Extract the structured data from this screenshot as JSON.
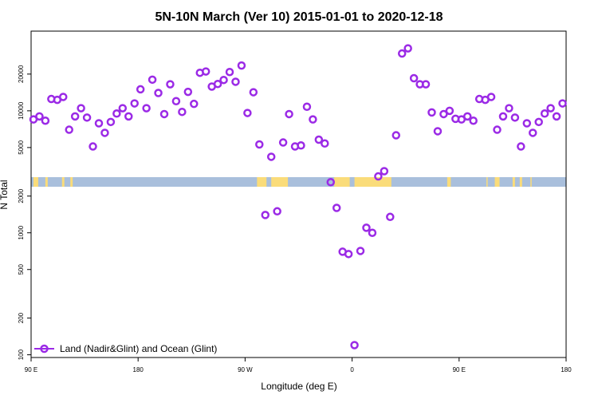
{
  "chart_data": {
    "type": "scatter",
    "title": "5N-10N March (Ver 10)   2015-01-01 to 2020-12-18",
    "xlabel": "Longitude (deg E)",
    "ylabel": "N Total",
    "x_ticks": [
      {
        "value": 90,
        "label": "90 E"
      },
      {
        "value": 180,
        "label": "180"
      },
      {
        "value": 270,
        "label": "90 W"
      },
      {
        "value": 360,
        "label": "0"
      },
      {
        "value": 450,
        "label": "90 E"
      },
      {
        "value": 540,
        "label": "180"
      }
    ],
    "y_ticks": [
      100,
      200,
      500,
      1000,
      2000,
      5000,
      10000,
      20000
    ],
    "xlim": [
      90,
      540
    ],
    "ylim": [
      95,
      45000
    ],
    "y_scale": "log",
    "legend_position": "bottom-left",
    "colors": {
      "series": "#9b2ae6",
      "ocean_band": "#a9bfdc",
      "land_band": "#fadc7a"
    },
    "series": [
      {
        "name": "Land (Nadir&Glint) and Ocean (Glint)",
        "x": [
          92,
          97,
          102,
          107,
          112,
          117,
          122,
          127,
          132,
          137,
          142,
          147,
          152,
          157,
          162,
          167,
          172,
          177,
          182,
          187,
          192,
          197,
          202,
          207,
          212,
          217,
          222,
          227,
          232,
          237,
          242,
          247,
          252,
          257,
          262,
          267,
          272,
          277,
          282,
          287,
          292,
          297,
          302,
          307,
          312,
          317,
          322,
          327,
          332,
          337,
          342,
          347,
          352,
          357,
          362,
          367,
          372,
          377,
          382,
          387,
          392,
          397,
          402,
          407,
          412,
          417,
          422,
          427,
          432,
          437,
          442,
          447,
          452,
          457,
          462,
          467,
          472,
          477,
          482,
          487,
          492,
          497,
          502,
          507,
          512,
          517,
          522,
          527,
          532,
          537
        ],
        "y": [
          8500,
          9000,
          8300,
          12500,
          12300,
          13000,
          7000,
          9000,
          10500,
          8800,
          5100,
          7900,
          6600,
          8100,
          9500,
          10500,
          9000,
          11500,
          15000,
          10500,
          18000,
          14000,
          9400,
          16500,
          12000,
          9800,
          14300,
          11400,
          20500,
          21000,
          15800,
          16600,
          17900,
          20800,
          17300,
          23500,
          9600,
          14200,
          5300,
          1400,
          4200,
          1500,
          5500,
          9400,
          5100,
          5200,
          10800,
          8500,
          5800,
          5400,
          2600,
          1600,
          700,
          670,
          120,
          710,
          1100,
          1000,
          2900,
          3200,
          1350,
          6300,
          29500,
          32500,
          18500,
          16500,
          16500,
          9700,
          6800,
          9400,
          10000,
          8600,
          8500,
          9000,
          8300,
          12500,
          12300,
          13000,
          7000,
          9000,
          10500,
          8800,
          5100,
          7900,
          6600,
          8100,
          9500,
          10500,
          9000,
          11500
        ]
      }
    ]
  }
}
